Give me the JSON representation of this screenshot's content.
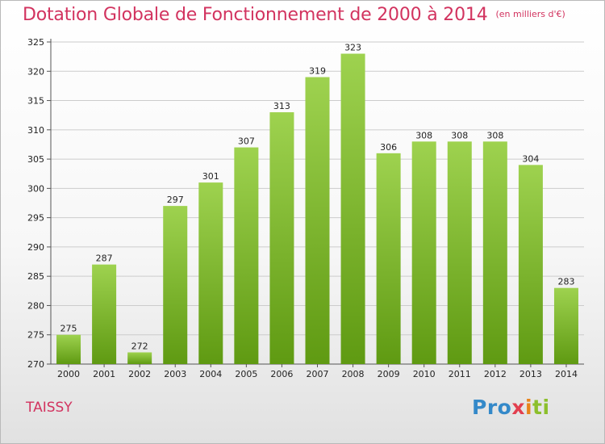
{
  "header": {
    "title": "Dotation Globale de Fonctionnement de 2000 à 2014",
    "subtitle": "(en milliers d'€)"
  },
  "footer": {
    "commune": "TAISSY",
    "logo_parts": [
      "Pro",
      "x",
      "i",
      "ti"
    ]
  },
  "colors": {
    "title": "#d2335f",
    "bar_light": "#9ed24f",
    "bar_dark": "#5f9a12",
    "grid": "#cccccc",
    "logo_blue": "#3489c9",
    "logo_orange": "#e8841b",
    "logo_red": "#e23f4f",
    "logo_green": "#8cbf2c"
  },
  "chart_data": {
    "type": "bar",
    "title": "Dotation Globale de Fonctionnement de 2000 à 2014",
    "subtitle": "(en milliers d'€)",
    "xlabel": "",
    "ylabel": "",
    "categories": [
      "2000",
      "2001",
      "2002",
      "2003",
      "2004",
      "2005",
      "2006",
      "2007",
      "2008",
      "2009",
      "2010",
      "2011",
      "2012",
      "2013",
      "2014"
    ],
    "values": [
      275,
      287,
      272,
      297,
      301,
      307,
      313,
      319,
      323,
      306,
      308,
      308,
      308,
      304,
      283
    ],
    "ylim": [
      270,
      325
    ],
    "yticks": [
      270,
      275,
      280,
      285,
      290,
      295,
      300,
      305,
      310,
      315,
      320,
      325
    ],
    "grid": true,
    "legend": "none"
  }
}
